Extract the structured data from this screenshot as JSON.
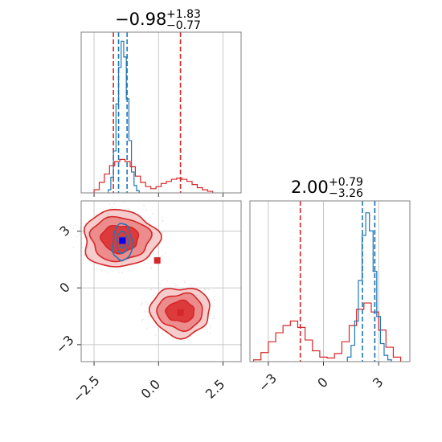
{
  "colors": {
    "red": "#d62728",
    "blue": "#1f77b4",
    "grid": "#c8c8c8",
    "frame": "#808080"
  },
  "chart_data": [
    {
      "type": "histogram",
      "panel": "top-left",
      "variable": "x",
      "title": {
        "main": "−0.98",
        "sup": "+1.83",
        "sub": "−0.77"
      },
      "xlim": [
        -3.0,
        3.2
      ],
      "xticks": [
        -2.5,
        0.0,
        2.5
      ],
      "tick_labels": [
        "",
        "",
        ""
      ],
      "series": [
        {
          "color": "red",
          "x": [
            -2.4,
            -2.2,
            -2.0,
            -1.8,
            -1.6,
            -1.4,
            -1.2,
            -1.0,
            -0.8,
            -0.6,
            -0.4,
            -0.2,
            0.0,
            0.2,
            0.4,
            0.6,
            0.8,
            1.0,
            1.2,
            1.4,
            1.6,
            1.8,
            2.0
          ],
          "values": [
            0.3,
            1.0,
            1.8,
            2.6,
            3.0,
            3.2,
            3.0,
            2.5,
            1.6,
            1.0,
            0.6,
            0.4,
            0.6,
            0.9,
            1.1,
            1.3,
            1.4,
            1.3,
            1.1,
            0.8,
            0.5,
            0.3,
            0.15
          ],
          "quantiles": [
            -1.75,
            0.85
          ]
        },
        {
          "color": "blue",
          "x": [
            -1.9,
            -1.8,
            -1.7,
            -1.6,
            -1.5,
            -1.4,
            -1.3,
            -1.2,
            -1.1,
            -1.0,
            -0.9,
            -0.8
          ],
          "values": [
            0.3,
            1.5,
            4.0,
            8.5,
            12.0,
            14.5,
            13.0,
            9.0,
            5.0,
            2.0,
            0.7,
            0.2
          ],
          "quantiles": [
            -1.55,
            -1.22
          ]
        }
      ]
    },
    {
      "type": "contour",
      "panel": "bottom-left",
      "xlim": [
        -3.0,
        3.2
      ],
      "ylim": [
        -3.9,
        4.6
      ],
      "xticks": [
        -2.5,
        0.0,
        2.5
      ],
      "yticks": [
        -3,
        0,
        3
      ],
      "xtick_labels": [
        "−2.5",
        "0.0",
        "2.5"
      ],
      "ytick_labels": [
        "−3",
        "0",
        "3"
      ],
      "series": [
        {
          "color": "red",
          "modes": [
            {
              "center": [
                -1.5,
                2.6
              ],
              "sizes": [
                [
                  1.45,
                  1.5
                ],
                [
                  1.15,
                  1.15
                ],
                [
                  0.72,
                  0.72
                ]
              ]
            },
            {
              "center": [
                0.85,
                -1.25
              ],
              "sizes": [
                [
                  1.15,
                  1.3
                ],
                [
                  0.88,
                  0.95
                ],
                [
                  0.55,
                  0.55
                ]
              ]
            }
          ],
          "markers": [
            [
              -1.4,
              2.5
            ],
            [
              -0.05,
              1.45
            ],
            [
              0.85,
              -1.3
            ]
          ]
        },
        {
          "color": "blue",
          "modes": [
            {
              "center": [
                -1.4,
                2.4
              ],
              "sizes": [
                [
                  0.38,
                  0.98
                ],
                [
                  0.22,
                  0.58
                ],
                [
                  0.12,
                  0.28
                ]
              ]
            }
          ],
          "markers": [
            [
              -1.4,
              2.5
            ]
          ]
        }
      ]
    },
    {
      "type": "histogram",
      "panel": "bottom-right",
      "variable": "y",
      "title": {
        "main": "2.00",
        "sup": "+0.79",
        "sub": "−3.26"
      },
      "xlim": [
        -4.0,
        4.7
      ],
      "xticks": [
        -3,
        0,
        3
      ],
      "tick_labels": [
        "−3",
        "0",
        "3"
      ],
      "series": [
        {
          "color": "red",
          "x": [
            -3.6,
            -3.2,
            -2.8,
            -2.4,
            -2.0,
            -1.6,
            -1.2,
            -0.8,
            -0.4,
            0.0,
            0.4,
            0.8,
            1.2,
            1.6,
            2.0,
            2.4,
            2.8,
            3.2,
            3.6,
            4.0
          ],
          "values": [
            0.2,
            1.0,
            2.2,
            3.2,
            4.0,
            4.5,
            3.8,
            2.4,
            1.2,
            0.5,
            0.4,
            0.9,
            2.2,
            4.0,
            5.8,
            6.5,
            5.5,
            3.5,
            1.6,
            0.5
          ],
          "quantiles": [
            -1.26,
            2.79
          ]
        },
        {
          "color": "blue",
          "x": [
            1.4,
            1.6,
            1.8,
            2.0,
            2.2,
            2.4,
            2.6,
            2.8,
            3.0,
            3.2,
            3.4,
            3.6
          ],
          "values": [
            0.5,
            1.8,
            4.5,
            9.0,
            14.0,
            16.5,
            14.5,
            10.0,
            5.0,
            2.0,
            0.7,
            0.2
          ],
          "quantiles": [
            2.12,
            2.79
          ]
        }
      ]
    }
  ]
}
